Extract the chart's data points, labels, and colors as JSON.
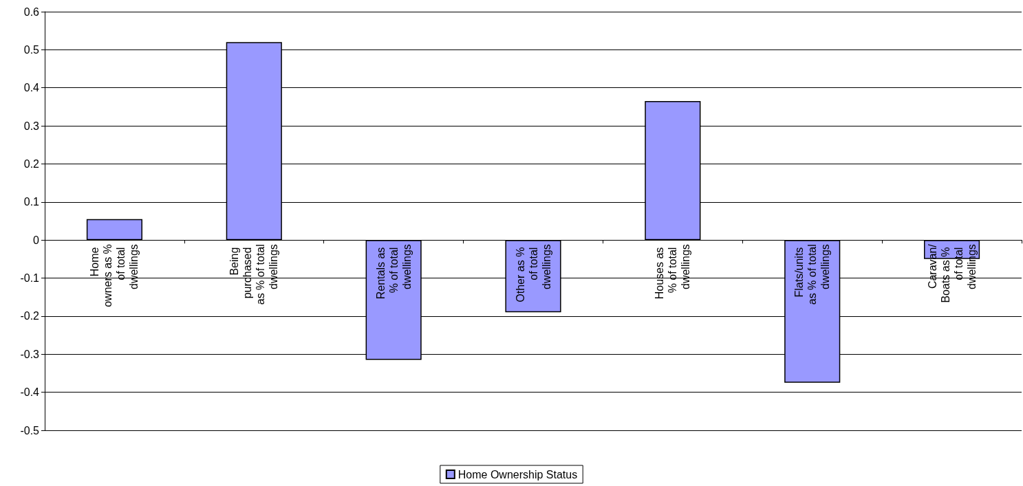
{
  "chart_data": {
    "type": "bar",
    "categories": [
      "Home owners as % of total dwellings",
      "Being purchased as % of total dwellings",
      "Rentals as % of total dwellings",
      "Other as % of total dwellings",
      "Houses as % of total dwellings",
      "Flats/units as % of total dwellings",
      "Caravan/Boats as % of total dwellings"
    ],
    "series": [
      {
        "name": "Home Ownership Status",
        "color": "#9999ff",
        "values": [
          0.055,
          0.52,
          -0.315,
          -0.19,
          0.365,
          -0.375,
          -0.05
        ]
      }
    ],
    "ylim": [
      -0.5,
      0.6
    ],
    "yticks": [
      -0.5,
      -0.4,
      -0.3,
      -0.2,
      -0.1,
      0,
      0.1,
      0.2,
      0.3,
      0.4,
      0.5,
      0.6
    ],
    "grid": "y",
    "legend": "bottom"
  }
}
